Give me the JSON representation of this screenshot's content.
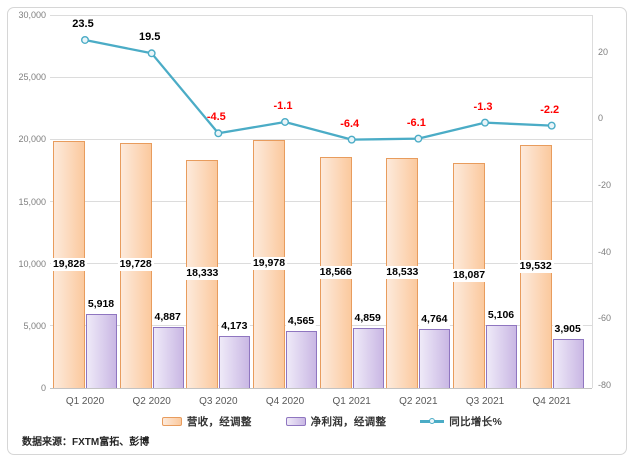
{
  "source_note": "数据来源：FXTM富拓、彭博",
  "chart_data": {
    "type": "bar",
    "subtype": "combo-bar-line",
    "title": "",
    "xlabel": "",
    "ylabel": "",
    "grid": true,
    "legend_position": "bottom",
    "categories": [
      "Q1 2020",
      "Q2 2020",
      "Q3 2020",
      "Q4 2020",
      "Q1 2021",
      "Q2 2021",
      "Q3 2021",
      "Q4 2021"
    ],
    "series": [
      {
        "name": "营收，经调整",
        "type": "bar",
        "axis": "left",
        "values": [
          19828,
          19728,
          18333,
          19978,
          18566,
          18533,
          18087,
          19532
        ],
        "labels": [
          "19,828",
          "19,728",
          "18,333",
          "19,978",
          "18,566",
          "18,533",
          "18,087",
          "19,532"
        ],
        "fill_from": "#fdeadb",
        "fill_to": "#fbc99e",
        "border_color": "#e89c5d",
        "label_color": "#000000"
      },
      {
        "name": "净利润，经调整",
        "type": "bar",
        "axis": "left",
        "values": [
          5918,
          4887,
          4173,
          4565,
          4859,
          4764,
          5106,
          3905
        ],
        "labels": [
          "5,918",
          "4,887",
          "4,173",
          "4,565",
          "4,859",
          "4,764",
          "5,106",
          "3,905"
        ],
        "fill_from": "#efeaf8",
        "fill_to": "#c9b7e4",
        "border_color": "#8f76c0",
        "label_color": "#000000"
      },
      {
        "name": "同比增长%",
        "type": "line",
        "axis": "right",
        "values": [
          23.5,
          19.5,
          -4.5,
          -1.1,
          -6.4,
          -6.1,
          -1.3,
          -2.2
        ],
        "labels": [
          "23.5",
          "19.5",
          "-4.5",
          "-1.1",
          "-6.4",
          "-6.1",
          "-1.3",
          "-2.2"
        ],
        "color": "#4bacc6",
        "marker_fill": "#eaf5f9",
        "positive_label_color": "#000000",
        "negative_label_color": "#ff0000"
      }
    ],
    "left_axis": {
      "min": 0,
      "max": 30000,
      "tick_values": [
        0,
        5000,
        10000,
        15000,
        20000,
        25000,
        30000
      ],
      "tick_labels": [
        "0",
        "5,000",
        "10,000",
        "15,000",
        "20,000",
        "25,000",
        "30,000"
      ]
    },
    "right_axis": {
      "tick_values": [
        20,
        0,
        -20,
        -40,
        -60,
        -80
      ],
      "tick_labels": [
        "20",
        "0",
        "-20",
        "-40",
        "-60",
        "-80"
      ]
    },
    "colors": {
      "gridline": "#dcdcdc",
      "axis_text": "#7f7f7f",
      "category_text": "#595959"
    }
  }
}
